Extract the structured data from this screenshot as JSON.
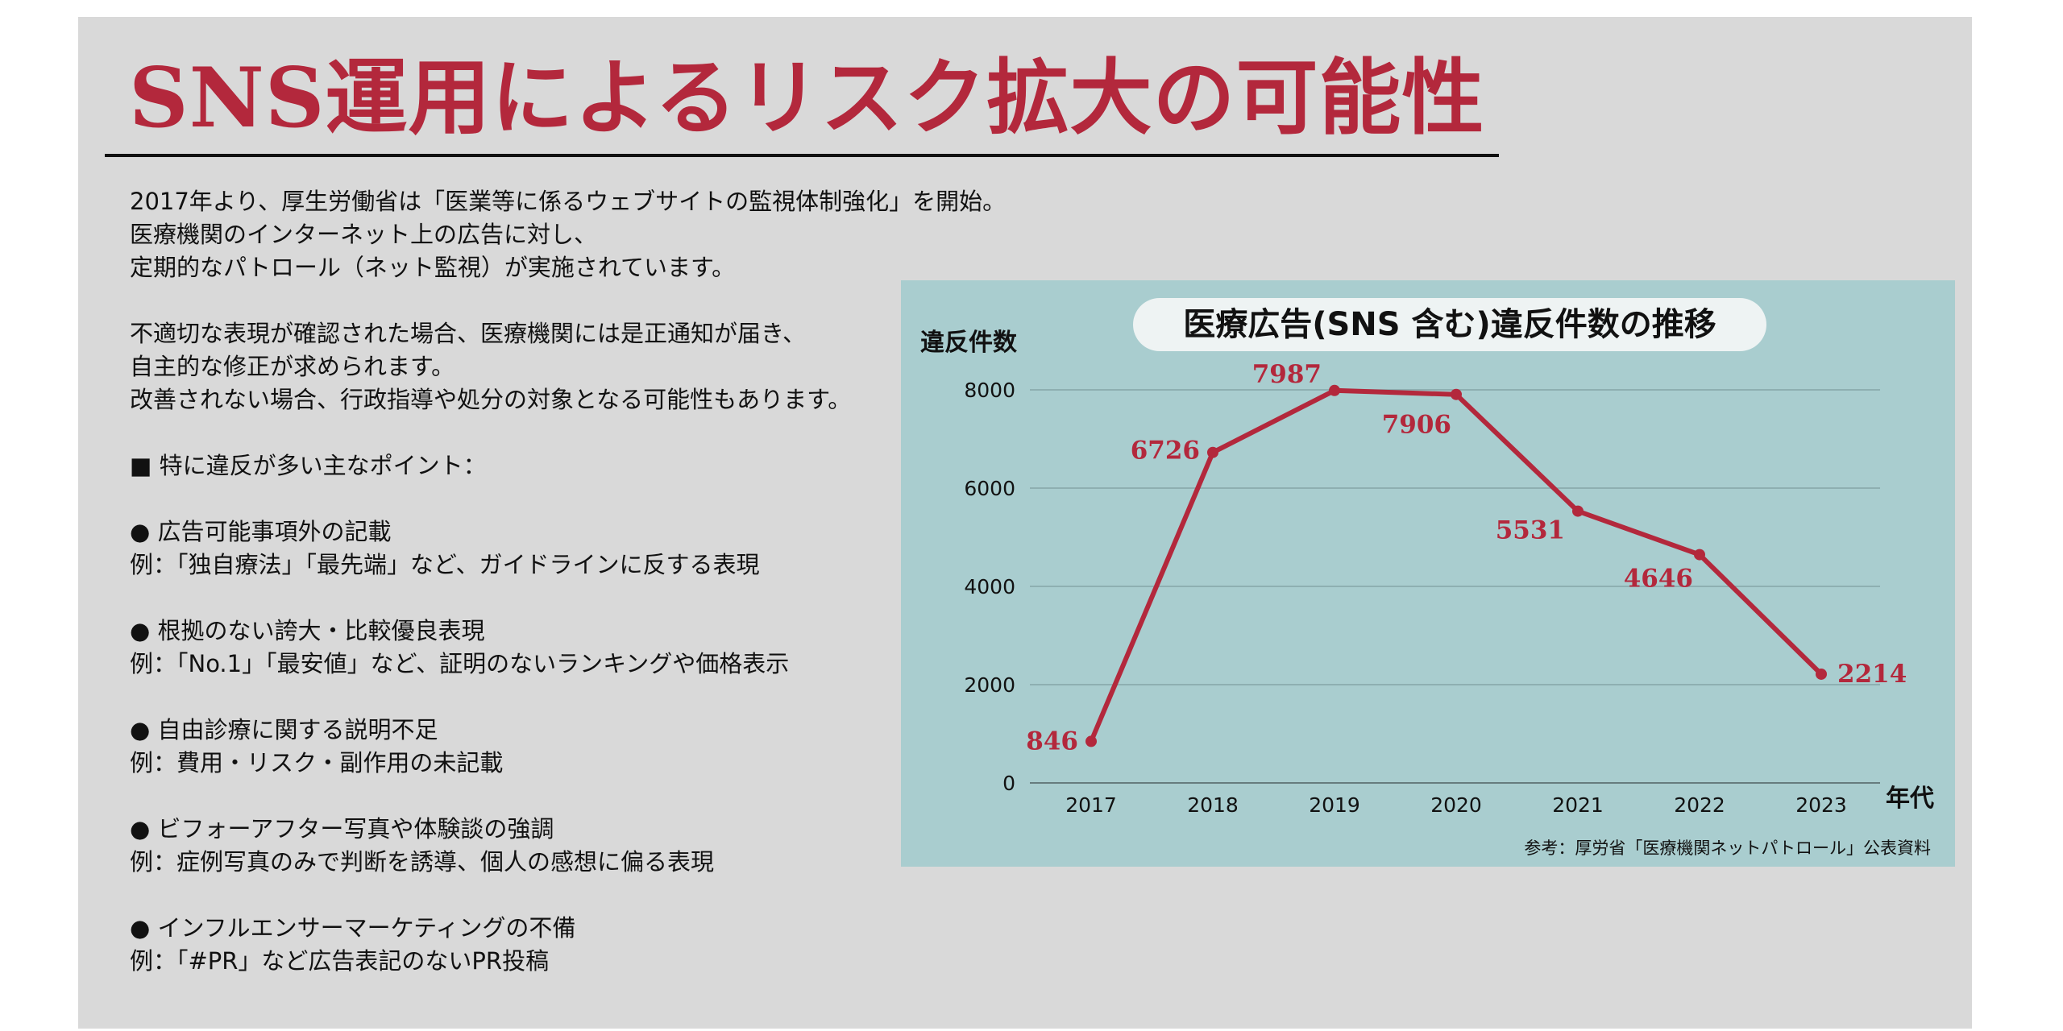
{
  "slide": {
    "title": "SNS運用によるリスク拡大の可能性",
    "body_lines": [
      "2017年より、厚生労働省は「医業等に係るウェブサイトの監視体制強化」を開始。",
      "医療機関のインターネット上の広告に対し、",
      "定期的なパトロール（ネット監視）が実施されています。",
      "",
      "不適切な表現が確認された場合、医療機関には是正通知が届き、",
      "自主的な修正が求められます。",
      "改善されない場合、行政指導や処分の対象となる可能性もあります。",
      "",
      "■ 特に違反が多い主なポイント：",
      "",
      "● 広告可能事項外の記載",
      "例：「独自療法」「最先端」など、ガイドラインに反する表現",
      "",
      "● 根拠のない誇大・比較優良表現",
      "例：「No.1」「最安値」など、証明のないランキングや価格表示",
      "",
      "● 自由診療に関する説明不足",
      "例：費用・リスク・副作用の未記載",
      "",
      "● ビフォーアフター写真や体験談の強調",
      "例：症例写真のみで判断を誘導、個人の感想に偏る表現",
      "",
      "● インフルエンサーマーケティングの不備",
      "例：「#PR」など広告表記のないPR投稿"
    ]
  },
  "colors": {
    "slide_background": "#d9d9d9",
    "title": "#b3283c",
    "chart_background": "#a9cdcf",
    "line": "#b3283c",
    "title_pill": "#eef3f3"
  },
  "chart_data": {
    "type": "line",
    "title": "医療広告(SNS 含む)違反件数の推移",
    "ylabel": "違反件数",
    "xlabel": "年代",
    "source": "参考：厚労省「医療機関ネットパトロール」公表資料",
    "categories": [
      "2017",
      "2018",
      "2019",
      "2020",
      "2021",
      "2022",
      "2023"
    ],
    "values": [
      846,
      6726,
      7987,
      7906,
      5531,
      4646,
      2214
    ],
    "yticks": [
      0,
      2000,
      4000,
      6000,
      8000
    ],
    "ylim": [
      0,
      8000
    ],
    "grid": true,
    "data_labels": true,
    "legend": false
  }
}
